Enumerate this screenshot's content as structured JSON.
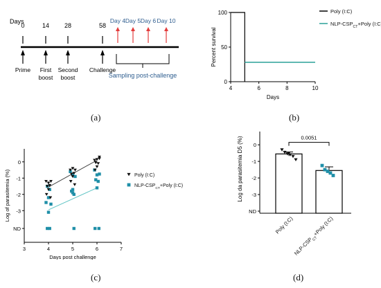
{
  "panel_a": {
    "caption": "(a)",
    "days_label": "Days",
    "days": [
      "0",
      "14",
      "28",
      "58"
    ],
    "sampling_days": [
      "Day 4",
      "Day 5",
      "Day 6",
      "Day 10"
    ],
    "events": [
      "Prime",
      "First",
      "boost",
      "Second",
      "boost",
      "Challenge"
    ],
    "sampling_label": "Sampling post-challenge",
    "colors": {
      "timeline": "#000000",
      "sampling_text": "#2e5d8f",
      "sampling_arrow": "#e23b3b"
    }
  },
  "panel_b": {
    "caption": "(b)",
    "colors": {
      "poly": "#000000",
      "nlp": "#2aa198"
    },
    "chart_data": {
      "type": "line",
      "xlabel": "Days",
      "ylabel": "Percent survival",
      "xlim": [
        4,
        10
      ],
      "ylim": [
        0,
        100
      ],
      "x_ticks": [
        "4",
        "6",
        "8",
        "10"
      ],
      "y_ticks": [
        "0",
        "50",
        "100"
      ],
      "legend_position": "top-right",
      "series": [
        {
          "name": "Poly (I:C)",
          "x": [
            4,
            5,
            5
          ],
          "y": [
            100,
            100,
            0
          ]
        },
        {
          "name": "NLP-CSP",
          "name_sub": "CT",
          "name_tail": "+Poly (I:C)",
          "x": [
            5,
            10
          ],
          "y": [
            28,
            28
          ]
        }
      ]
    }
  },
  "panel_c": {
    "caption": "(c)",
    "colors": {
      "poly": "#111111",
      "nlp": "#1f8fa8",
      "nlp_fit": "#5fc4c4"
    },
    "chart_data": {
      "type": "scatter",
      "xlabel": "Days post challenge",
      "ylabel": "Log of parasitemia (%)",
      "xlim": [
        3,
        7
      ],
      "ylim": [
        -3.8,
        0.8
      ],
      "x_ticks": [
        "3",
        "4",
        "5",
        "6",
        "7"
      ],
      "y_ticks": [
        "0",
        "-1",
        "-2",
        "-3",
        "ND"
      ],
      "legend_position": "right",
      "series": [
        {
          "name": "Poly (I:C)",
          "marker": "triangle-down",
          "x": [
            3.9,
            4.0,
            4.1,
            3.95,
            4.05,
            4.0,
            3.92,
            4.08,
            4.9,
            5.0,
            5.1,
            4.95,
            5.05,
            5.0,
            4.92,
            5.08,
            5.9,
            6.0,
            6.1,
            5.95,
            6.05,
            6.0,
            5.92,
            6.1
          ],
          "y": [
            -1.2,
            -1.3,
            -1.2,
            -1.5,
            -1.45,
            -1.7,
            -2.0,
            -2.2,
            -0.5,
            -0.4,
            -0.5,
            -0.75,
            -0.7,
            -0.9,
            -1.2,
            -1.4,
            0.1,
            0.15,
            0.2,
            -0.05,
            -0.1,
            -0.3,
            -0.5,
            0.3
          ],
          "fit": [
            [
              4,
              -1.55
            ],
            [
              6,
              0.1
            ]
          ]
        },
        {
          "name": "NLP-CSP",
          "name_sub": "CT",
          "name_tail": "+Poly (I:C)",
          "marker": "square",
          "x": [
            3.95,
            4.05,
            4.0,
            3.9,
            4.1,
            4.0,
            3.95,
            4.05,
            4.9,
            5.0,
            5.1,
            5.0,
            4.95,
            5.05,
            5.0,
            5.05,
            5.9,
            6.0,
            6.1,
            5.95,
            6.05,
            6.0,
            5.92,
            6.08
          ],
          "y": [
            -1.5,
            -1.7,
            -2.2,
            -2.5,
            -2.6,
            -3.1,
            "ND",
            "ND",
            -0.6,
            -0.8,
            -0.9,
            -1.7,
            -1.8,
            -2.0,
            -1.9,
            "ND",
            -0.5,
            -0.8,
            -0.75,
            -1.1,
            -1.2,
            -1.6,
            "ND",
            "ND"
          ],
          "fit": [
            [
              4,
              -2.95
            ],
            [
              6,
              -1.6
            ]
          ]
        }
      ]
    }
  },
  "panel_d": {
    "caption": "(d)",
    "colors": {
      "poly": "#111111",
      "nlp": "#1f8fa8",
      "bar": "#000000"
    },
    "chart_data": {
      "type": "bar",
      "ylabel": "Log da parasitemia  D5 (%)",
      "ylim": [
        -3.8,
        0.8
      ],
      "y_ticks": [
        "0",
        "-1",
        "-2",
        "-3",
        "ND"
      ],
      "categories": [
        "Poly (I:C)",
        "NLP-CSP"
      ],
      "category_sub": [
        "",
        "CT"
      ],
      "category_tail": [
        "",
        "+Poly (I:C)"
      ],
      "values": [
        -0.55,
        -1.55
      ],
      "errors": [
        0.12,
        0.22
      ],
      "points": [
        {
          "category": 0,
          "marker": "triangle-down",
          "y": [
            -0.3,
            -0.45,
            -0.55,
            -0.6,
            -0.7,
            -0.9,
            -0.5
          ]
        },
        {
          "category": 1,
          "marker": "square",
          "y": [
            -1.25,
            -1.5,
            -1.6,
            -1.7,
            -1.85
          ]
        }
      ],
      "significance": {
        "label": "0.0051",
        "between": [
          0,
          1
        ]
      }
    }
  }
}
